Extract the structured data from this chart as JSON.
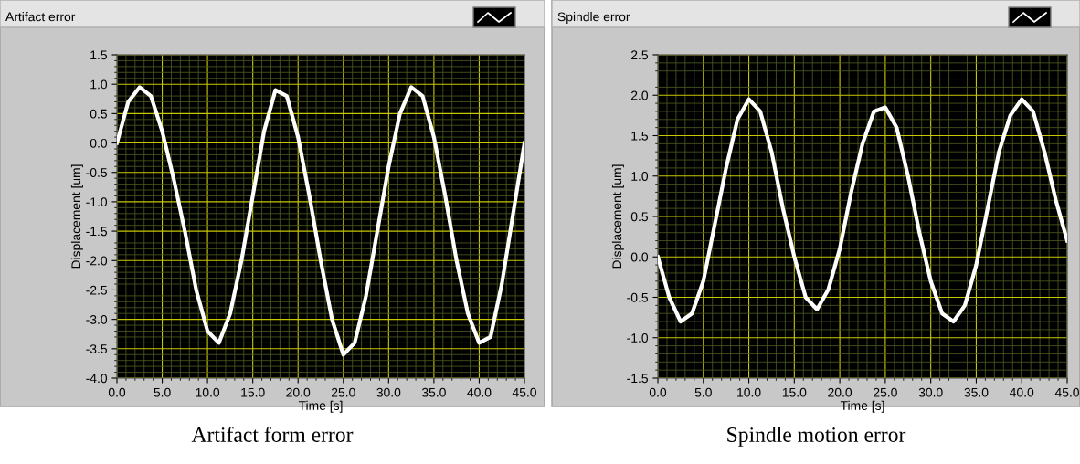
{
  "chart_data": [
    {
      "type": "line",
      "title": "Artifact error",
      "xlabel": "Time [s]",
      "ylabel": "Displacement [um]",
      "annotations": [
        "Artifact form error"
      ],
      "x": [
        0,
        1.25,
        2.5,
        3.75,
        5,
        6.25,
        7.5,
        8.75,
        10,
        11.25,
        12.5,
        13.75,
        15,
        16.25,
        17.5,
        18.75,
        20,
        21.25,
        22.5,
        23.75,
        25,
        26.25,
        27.5,
        28.75,
        30,
        31.25,
        32.5,
        33.75,
        35,
        36.25,
        37.5,
        38.75,
        40,
        41.25,
        42.5,
        43.75,
        45
      ],
      "series": [
        {
          "color": "#ffffff",
          "values": [
            0.0,
            0.7,
            0.95,
            0.8,
            0.2,
            -0.6,
            -1.5,
            -2.5,
            -3.2,
            -3.4,
            -2.9,
            -2.0,
            -0.9,
            0.2,
            0.9,
            0.8,
            0.1,
            -0.9,
            -2.0,
            -3.0,
            -3.6,
            -3.4,
            -2.6,
            -1.5,
            -0.4,
            0.5,
            0.95,
            0.8,
            0.1,
            -0.9,
            -2.0,
            -2.9,
            -3.4,
            -3.3,
            -2.4,
            -1.2,
            0.0
          ]
        }
      ],
      "xlim": [
        0,
        45
      ],
      "xticks": [
        {
          "value": 0,
          "label": "0.0"
        },
        {
          "value": 5,
          "label": "5.0"
        },
        {
          "value": 10,
          "label": "10.0"
        },
        {
          "value": 15,
          "label": "15.0"
        },
        {
          "value": 20,
          "label": "20.0"
        },
        {
          "value": 25,
          "label": "25.0"
        },
        {
          "value": 30,
          "label": "30.0"
        },
        {
          "value": 35,
          "label": "35.0"
        },
        {
          "value": 40,
          "label": "40.0"
        },
        {
          "value": 45,
          "label": "45.0"
        },
        {
          "value": 1,
          "label": null
        },
        {
          "value": 2,
          "label": null
        },
        {
          "value": 3,
          "label": null
        },
        {
          "value": 4,
          "label": null
        },
        {
          "value": 6,
          "label": null
        },
        {
          "value": 7,
          "label": null
        },
        {
          "value": 8,
          "label": null
        },
        {
          "value": 9,
          "label": null
        },
        {
          "value": 11,
          "label": null
        },
        {
          "value": 12,
          "label": null
        },
        {
          "value": 13,
          "label": null
        },
        {
          "value": 14,
          "label": null
        },
        {
          "value": 16,
          "label": null
        },
        {
          "value": 17,
          "label": null
        },
        {
          "value": 18,
          "label": null
        },
        {
          "value": 19,
          "label": null
        },
        {
          "value": 21,
          "label": null
        },
        {
          "value": 22,
          "label": null
        },
        {
          "value": 23,
          "label": null
        },
        {
          "value": 24,
          "label": null
        },
        {
          "value": 26,
          "label": null
        },
        {
          "value": 27,
          "label": null
        },
        {
          "value": 28,
          "label": null
        },
        {
          "value": 29,
          "label": null
        },
        {
          "value": 31,
          "label": null
        },
        {
          "value": 32,
          "label": null
        },
        {
          "value": 33,
          "label": null
        },
        {
          "value": 34,
          "label": null
        },
        {
          "value": 36,
          "label": null
        },
        {
          "value": 37,
          "label": null
        },
        {
          "value": 38,
          "label": null
        },
        {
          "value": 39,
          "label": null
        },
        {
          "value": 41,
          "label": null
        },
        {
          "value": 42,
          "label": null
        },
        {
          "value": 43,
          "label": null
        },
        {
          "value": 44,
          "label": null
        }
      ],
      "ylim": [
        -4,
        1.5
      ],
      "yticks": [
        {
          "value": 1.5,
          "label": "1.5"
        },
        {
          "value": 1,
          "label": "1.0"
        },
        {
          "value": 0.5,
          "label": "0.5"
        },
        {
          "value": 0,
          "label": "0.0"
        },
        {
          "value": -0.5,
          "label": "-0.5"
        },
        {
          "value": -1,
          "label": "-1.0"
        },
        {
          "value": -1.5,
          "label": "-1.5"
        },
        {
          "value": -2,
          "label": "-2.0"
        },
        {
          "value": -2.5,
          "label": "-2.5"
        },
        {
          "value": -3,
          "label": "-3.0"
        },
        {
          "value": -3.5,
          "label": "-3.5"
        },
        {
          "value": -4,
          "label": "-4.0"
        },
        {
          "value": 1.4,
          "label": null
        },
        {
          "value": 1.3,
          "label": null
        },
        {
          "value": 1.2,
          "label": null
        },
        {
          "value": 1.1,
          "label": null
        },
        {
          "value": 0.9,
          "label": null
        },
        {
          "value": 0.8,
          "label": null
        },
        {
          "value": 0.7,
          "label": null
        },
        {
          "value": 0.6,
          "label": null
        },
        {
          "value": 0.4,
          "label": null
        },
        {
          "value": 0.3,
          "label": null
        },
        {
          "value": 0.2,
          "label": null
        },
        {
          "value": 0.1,
          "label": null
        },
        {
          "value": -0.1,
          "label": null
        },
        {
          "value": -0.2,
          "label": null
        },
        {
          "value": -0.3,
          "label": null
        },
        {
          "value": -0.4,
          "label": null
        },
        {
          "value": -0.6,
          "label": null
        },
        {
          "value": -0.7,
          "label": null
        },
        {
          "value": -0.8,
          "label": null
        },
        {
          "value": -0.9,
          "label": null
        },
        {
          "value": -1.1,
          "label": null
        },
        {
          "value": -1.2,
          "label": null
        },
        {
          "value": -1.3,
          "label": null
        },
        {
          "value": -1.4,
          "label": null
        },
        {
          "value": -1.6,
          "label": null
        },
        {
          "value": -1.7,
          "label": null
        },
        {
          "value": -1.8,
          "label": null
        },
        {
          "value": -1.9,
          "label": null
        },
        {
          "value": -2.1,
          "label": null
        },
        {
          "value": -2.2,
          "label": null
        },
        {
          "value": -2.3,
          "label": null
        },
        {
          "value": -2.4,
          "label": null
        },
        {
          "value": -2.6,
          "label": null
        },
        {
          "value": -2.7,
          "label": null
        },
        {
          "value": -2.8,
          "label": null
        },
        {
          "value": -2.9,
          "label": null
        },
        {
          "value": -3.1,
          "label": null
        },
        {
          "value": -3.2,
          "label": null
        },
        {
          "value": -3.3,
          "label": null
        },
        {
          "value": -3.4,
          "label": null
        },
        {
          "value": -3.6,
          "label": null
        },
        {
          "value": -3.7,
          "label": null
        },
        {
          "value": -3.8,
          "label": null
        },
        {
          "value": -3.9,
          "label": null
        }
      ],
      "grid": true,
      "legend": false
    },
    {
      "type": "line",
      "title": "Spindle error",
      "xlabel": "Time [s]",
      "ylabel": "Displacement [um]",
      "annotations": [
        "Spindle motion error"
      ],
      "x": [
        0,
        1.25,
        2.5,
        3.75,
        5,
        6.25,
        7.5,
        8.75,
        10,
        11.25,
        12.5,
        13.75,
        15,
        16.25,
        17.5,
        18.75,
        20,
        21.25,
        22.5,
        23.75,
        25,
        26.25,
        27.5,
        28.75,
        30,
        31.25,
        32.5,
        33.75,
        35,
        36.25,
        37.5,
        38.75,
        40,
        41.25,
        42.5,
        43.75,
        45
      ],
      "series": [
        {
          "color": "#ffffff",
          "values": [
            0.0,
            -0.5,
            -0.8,
            -0.7,
            -0.3,
            0.4,
            1.1,
            1.7,
            1.95,
            1.8,
            1.3,
            0.6,
            0.0,
            -0.5,
            -0.65,
            -0.4,
            0.1,
            0.8,
            1.4,
            1.8,
            1.85,
            1.6,
            1.0,
            0.3,
            -0.3,
            -0.7,
            -0.8,
            -0.6,
            -0.1,
            0.6,
            1.3,
            1.75,
            1.95,
            1.8,
            1.3,
            0.7,
            0.2
          ]
        }
      ],
      "xlim": [
        0,
        45
      ],
      "xticks": [
        {
          "value": 0,
          "label": "0.0"
        },
        {
          "value": 5,
          "label": "5.0"
        },
        {
          "value": 10,
          "label": "10.0"
        },
        {
          "value": 15,
          "label": "15.0"
        },
        {
          "value": 20,
          "label": "20.0"
        },
        {
          "value": 25,
          "label": "25.0"
        },
        {
          "value": 30,
          "label": "30.0"
        },
        {
          "value": 35,
          "label": "35.0"
        },
        {
          "value": 40,
          "label": "40.0"
        },
        {
          "value": 45,
          "label": "45.0"
        },
        {
          "value": 1,
          "label": null
        },
        {
          "value": 2,
          "label": null
        },
        {
          "value": 3,
          "label": null
        },
        {
          "value": 4,
          "label": null
        },
        {
          "value": 6,
          "label": null
        },
        {
          "value": 7,
          "label": null
        },
        {
          "value": 8,
          "label": null
        },
        {
          "value": 9,
          "label": null
        },
        {
          "value": 11,
          "label": null
        },
        {
          "value": 12,
          "label": null
        },
        {
          "value": 13,
          "label": null
        },
        {
          "value": 14,
          "label": null
        },
        {
          "value": 16,
          "label": null
        },
        {
          "value": 17,
          "label": null
        },
        {
          "value": 18,
          "label": null
        },
        {
          "value": 19,
          "label": null
        },
        {
          "value": 21,
          "label": null
        },
        {
          "value": 22,
          "label": null
        },
        {
          "value": 23,
          "label": null
        },
        {
          "value": 24,
          "label": null
        },
        {
          "value": 26,
          "label": null
        },
        {
          "value": 27,
          "label": null
        },
        {
          "value": 28,
          "label": null
        },
        {
          "value": 29,
          "label": null
        },
        {
          "value": 31,
          "label": null
        },
        {
          "value": 32,
          "label": null
        },
        {
          "value": 33,
          "label": null
        },
        {
          "value": 34,
          "label": null
        },
        {
          "value": 36,
          "label": null
        },
        {
          "value": 37,
          "label": null
        },
        {
          "value": 38,
          "label": null
        },
        {
          "value": 39,
          "label": null
        },
        {
          "value": 41,
          "label": null
        },
        {
          "value": 42,
          "label": null
        },
        {
          "value": 43,
          "label": null
        },
        {
          "value": 44,
          "label": null
        }
      ],
      "ylim": [
        -1.5,
        2.5
      ],
      "yticks": [
        {
          "value": 2.5,
          "label": "2.5"
        },
        {
          "value": 2,
          "label": "2.0"
        },
        {
          "value": 1.5,
          "label": "1.5"
        },
        {
          "value": 1,
          "label": "1.0"
        },
        {
          "value": 0.5,
          "label": "0.5"
        },
        {
          "value": 0,
          "label": "0.0"
        },
        {
          "value": -0.5,
          "label": "-0.5"
        },
        {
          "value": -1,
          "label": "-1.0"
        },
        {
          "value": -1.5,
          "label": "-1.5"
        },
        {
          "value": 2.4,
          "label": null
        },
        {
          "value": 2.3,
          "label": null
        },
        {
          "value": 2.2,
          "label": null
        },
        {
          "value": 2.1,
          "label": null
        },
        {
          "value": 1.9,
          "label": null
        },
        {
          "value": 1.8,
          "label": null
        },
        {
          "value": 1.7,
          "label": null
        },
        {
          "value": 1.6,
          "label": null
        },
        {
          "value": 1.4,
          "label": null
        },
        {
          "value": 1.3,
          "label": null
        },
        {
          "value": 1.2,
          "label": null
        },
        {
          "value": 1.1,
          "label": null
        },
        {
          "value": 0.9,
          "label": null
        },
        {
          "value": 0.8,
          "label": null
        },
        {
          "value": 0.7,
          "label": null
        },
        {
          "value": 0.6,
          "label": null
        },
        {
          "value": 0.4,
          "label": null
        },
        {
          "value": 0.3,
          "label": null
        },
        {
          "value": 0.2,
          "label": null
        },
        {
          "value": 0.1,
          "label": null
        },
        {
          "value": -0.1,
          "label": null
        },
        {
          "value": -0.2,
          "label": null
        },
        {
          "value": -0.3,
          "label": null
        },
        {
          "value": -0.4,
          "label": null
        },
        {
          "value": -0.6,
          "label": null
        },
        {
          "value": -0.7,
          "label": null
        },
        {
          "value": -0.8,
          "label": null
        },
        {
          "value": -0.9,
          "label": null
        },
        {
          "value": -1.1,
          "label": null
        },
        {
          "value": -1.2,
          "label": null
        },
        {
          "value": -1.3,
          "label": null
        },
        {
          "value": -1.4,
          "label": null
        }
      ],
      "grid": true,
      "legend": false
    }
  ]
}
